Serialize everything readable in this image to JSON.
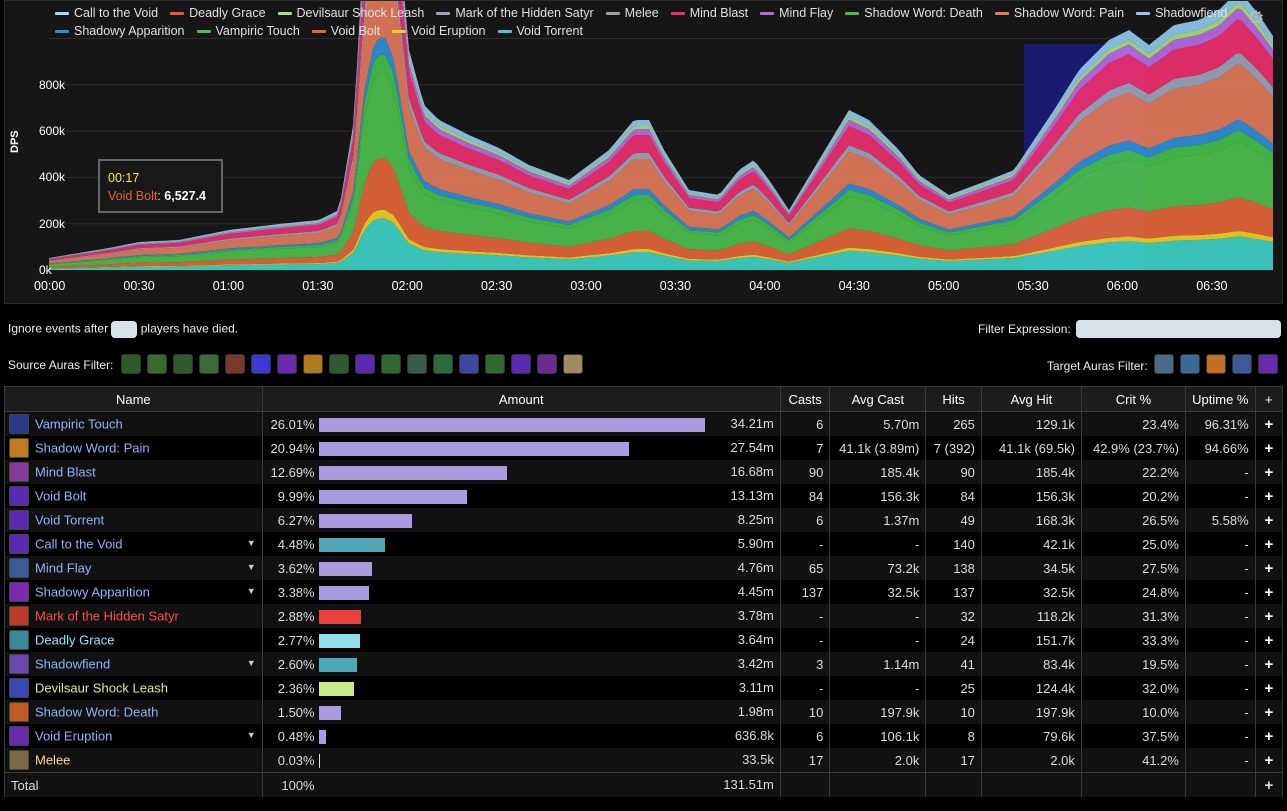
{
  "chart": {
    "ylabel": "DPS",
    "yticks": [
      "0k",
      "200k",
      "400k",
      "600k",
      "800k"
    ],
    "xticks": [
      "00:00",
      "00:30",
      "01:00",
      "01:30",
      "02:00",
      "02:30",
      "03:00",
      "03:30",
      "04:00",
      "04:30",
      "05:00",
      "05:30",
      "06:00",
      "06:30"
    ],
    "legend": [
      {
        "label": "Call to the Void",
        "color": "#a8d8f0"
      },
      {
        "label": "Deadly Grace",
        "color": "#f0553c"
      },
      {
        "label": "Devilsaur Shock Leash",
        "color": "#a6e07a"
      },
      {
        "label": "Mark of the Hidden Satyr",
        "color": "#9aa5b8"
      },
      {
        "label": "Melee",
        "color": "#9aa0a6"
      },
      {
        "label": "Mind Blast",
        "color": "#ee2f6e"
      },
      {
        "label": "Mind Flay",
        "color": "#b66be0"
      },
      {
        "label": "Shadow Word: Death",
        "color": "#44c04a"
      },
      {
        "label": "Shadow Word: Pain",
        "color": "#e27a5a"
      },
      {
        "label": "Shadowfiend",
        "color": "#90c8ea"
      },
      {
        "label": "Shadowy Apparition",
        "color": "#2f8fd6"
      },
      {
        "label": "Vampiric Touch",
        "color": "#4cbf4c"
      },
      {
        "label": "Void Bolt",
        "color": "#e5663b"
      },
      {
        "label": "Void Eruption",
        "color": "#f0d020"
      },
      {
        "label": "Void Torrent",
        "color": "#3ed1c6"
      }
    ],
    "tooltip": {
      "time": "00:17",
      "series": "Void Bolt",
      "value": "6,527.4"
    },
    "settings_icon": "gear-icon"
  },
  "controls": {
    "ignore_prefix": "Ignore events after",
    "ignore_suffix": "players have died.",
    "filter_label": "Filter Expression:",
    "source_auras_label": "Source Auras Filter:",
    "target_auras_label": "Target Auras Filter:"
  },
  "table": {
    "headers": [
      "Name",
      "Amount",
      "Casts",
      "Avg Cast",
      "Hits",
      "Avg Hit",
      "Crit %",
      "Uptime %",
      "+"
    ],
    "rows": [
      {
        "name": "Vampiric Touch",
        "color": "#8fb3ff",
        "pct": "26.01%",
        "amount": "34.21m",
        "casts": "6",
        "avg_cast": "5.70m",
        "hits": "265",
        "avg_hit": "129.1k",
        "crit": "23.4%",
        "uptime": "96.31%",
        "expand": false,
        "bar": 26.01,
        "bar_color": "#a99be0"
      },
      {
        "name": "Shadow Word: Pain",
        "color": "#8fb3ff",
        "pct": "20.94%",
        "amount": "27.54m",
        "casts": "7",
        "avg_cast": "41.1k (3.89m)",
        "hits": "7 (392)",
        "avg_hit": "41.1k (69.5k)",
        "crit": "42.9% (23.7%)",
        "uptime": "94.66%",
        "expand": false,
        "bar": 20.94,
        "bar_color": "#a99be0"
      },
      {
        "name": "Mind Blast",
        "color": "#8fb3ff",
        "pct": "12.69%",
        "amount": "16.68m",
        "casts": "90",
        "avg_cast": "185.4k",
        "hits": "90",
        "avg_hit": "185.4k",
        "crit": "22.2%",
        "uptime": "-",
        "expand": false,
        "bar": 12.69,
        "bar_color": "#a99be0"
      },
      {
        "name": "Void Bolt",
        "color": "#8fb3ff",
        "pct": "9.99%",
        "amount": "13.13m",
        "casts": "84",
        "avg_cast": "156.3k",
        "hits": "84",
        "avg_hit": "156.3k",
        "crit": "20.2%",
        "uptime": "-",
        "expand": false,
        "bar": 9.99,
        "bar_color": "#a99be0"
      },
      {
        "name": "Void Torrent",
        "color": "#8fb3ff",
        "pct": "6.27%",
        "amount": "8.25m",
        "casts": "6",
        "avg_cast": "1.37m",
        "hits": "49",
        "avg_hit": "168.3k",
        "crit": "26.5%",
        "uptime": "5.58%",
        "expand": false,
        "bar": 6.27,
        "bar_color": "#a99be0"
      },
      {
        "name": "Call to the Void",
        "color": "#8fb3ff",
        "pct": "4.48%",
        "amount": "5.90m",
        "casts": "-",
        "avg_cast": "-",
        "hits": "140",
        "avg_hit": "42.1k",
        "crit": "25.0%",
        "uptime": "-",
        "expand": true,
        "bar": 4.48,
        "bar_color": "#4fa7b8"
      },
      {
        "name": "Mind Flay",
        "color": "#8fb3ff",
        "pct": "3.62%",
        "amount": "4.76m",
        "casts": "65",
        "avg_cast": "73.2k",
        "hits": "138",
        "avg_hit": "34.5k",
        "crit": "27.5%",
        "uptime": "-",
        "expand": true,
        "bar": 3.62,
        "bar_color": "#a99be0"
      },
      {
        "name": "Shadowy Apparition",
        "color": "#8fb3ff",
        "pct": "3.38%",
        "amount": "4.45m",
        "casts": "137",
        "avg_cast": "32.5k",
        "hits": "137",
        "avg_hit": "32.5k",
        "crit": "24.8%",
        "uptime": "-",
        "expand": true,
        "bar": 3.38,
        "bar_color": "#a99be0"
      },
      {
        "name": "Mark of the Hidden Satyr",
        "color": "#ff4d4d",
        "pct": "2.88%",
        "amount": "3.78m",
        "casts": "-",
        "avg_cast": "-",
        "hits": "32",
        "avg_hit": "118.2k",
        "crit": "31.3%",
        "uptime": "-",
        "expand": false,
        "bar": 2.88,
        "bar_color": "#e84040"
      },
      {
        "name": "Deadly Grace",
        "color": "#8fe8ff",
        "pct": "2.77%",
        "amount": "3.64m",
        "casts": "-",
        "avg_cast": "-",
        "hits": "24",
        "avg_hit": "151.7k",
        "crit": "33.3%",
        "uptime": "-",
        "expand": false,
        "bar": 2.77,
        "bar_color": "#8fe0ee"
      },
      {
        "name": "Shadowfiend",
        "color": "#8fb3ff",
        "pct": "2.60%",
        "amount": "3.42m",
        "casts": "3",
        "avg_cast": "1.14m",
        "hits": "41",
        "avg_hit": "83.4k",
        "crit": "19.5%",
        "uptime": "-",
        "expand": true,
        "bar": 2.6,
        "bar_color": "#4fa7b8"
      },
      {
        "name": "Devilsaur Shock Leash",
        "color": "#d8f080",
        "pct": "2.36%",
        "amount": "3.11m",
        "casts": "-",
        "avg_cast": "-",
        "hits": "25",
        "avg_hit": "124.4k",
        "crit": "32.0%",
        "uptime": "-",
        "expand": false,
        "bar": 2.36,
        "bar_color": "#c6ee8a"
      },
      {
        "name": "Shadow Word: Death",
        "color": "#8fb3ff",
        "pct": "1.50%",
        "amount": "1.98m",
        "casts": "10",
        "avg_cast": "197.9k",
        "hits": "10",
        "avg_hit": "197.9k",
        "crit": "10.0%",
        "uptime": "-",
        "expand": false,
        "bar": 1.5,
        "bar_color": "#a99be0"
      },
      {
        "name": "Void Eruption",
        "color": "#8fb3ff",
        "pct": "0.48%",
        "amount": "636.8k",
        "casts": "6",
        "avg_cast": "106.1k",
        "hits": "8",
        "avg_hit": "79.6k",
        "crit": "37.5%",
        "uptime": "-",
        "expand": true,
        "bar": 0.48,
        "bar_color": "#a99be0"
      },
      {
        "name": "Melee",
        "color": "#ffd98a",
        "pct": "0.03%",
        "amount": "33.5k",
        "casts": "17",
        "avg_cast": "2.0k",
        "hits": "17",
        "avg_hit": "2.0k",
        "crit": "41.2%",
        "uptime": "-",
        "expand": false,
        "bar": 0.03,
        "bar_color": "#dddddd"
      }
    ],
    "total": {
      "label": "Total",
      "pct": "100%",
      "amount": "131.51m"
    }
  }
}
